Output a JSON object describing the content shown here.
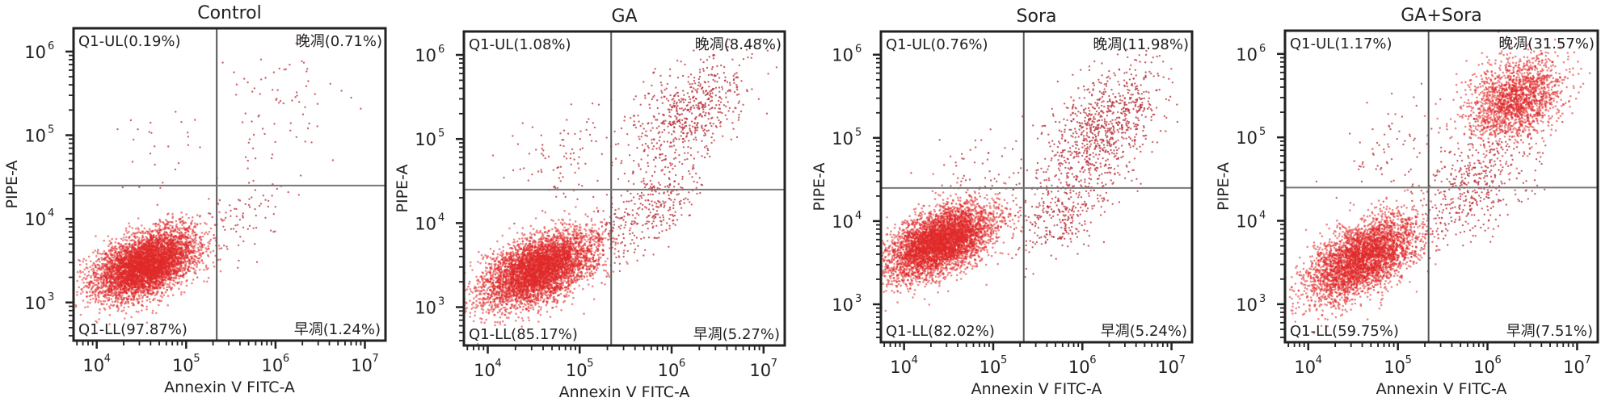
{
  "chart_data": [
    {
      "type": "scatter",
      "title": "Control",
      "xlabel": "Annexin V FITC-A",
      "ylabel": "PIPE-A",
      "xscale": "log",
      "yscale": "log",
      "xlim": [
        5500,
        17000000
      ],
      "ylim": [
        350,
        1900000
      ],
      "x_ticks": [
        {
          "base": "10",
          "exp": "4",
          "value": 10000
        },
        {
          "base": "10",
          "exp": "5",
          "value": 100000
        },
        {
          "base": "10",
          "exp": "6",
          "value": 1000000
        },
        {
          "base": "10",
          "exp": "7",
          "value": 10000000
        }
      ],
      "y_ticks": [
        {
          "base": "10",
          "exp": "3",
          "value": 1000
        },
        {
          "base": "10",
          "exp": "4",
          "value": 10000
        },
        {
          "base": "10",
          "exp": "5",
          "value": 100000
        },
        {
          "base": "10",
          "exp": "6",
          "value": 1000000
        }
      ],
      "gate": {
        "x": 220000,
        "y": 25000
      },
      "quadrants": [
        {
          "id": "UL",
          "label": "Q1-UL(0.19%)",
          "percent": 0.19,
          "position": "top-left"
        },
        {
          "id": "UR",
          "label": "晚凋(0.71%)",
          "percent": 0.71,
          "position": "top-right"
        },
        {
          "id": "LL",
          "label": "Q1-LL(97.87%)",
          "percent": 97.87,
          "position": "bottom-left"
        },
        {
          "id": "LR",
          "label": "早凋(1.24%)",
          "percent": 1.24,
          "position": "bottom-right"
        }
      ],
      "populations": [
        {
          "name": "live",
          "log_x_center": 4.55,
          "log_y_center": 3.45,
          "log_x_sd": 0.28,
          "log_y_sd": 0.2,
          "corr": 0.45,
          "n": 5200
        },
        {
          "name": "late",
          "log_x_center": 6.1,
          "log_y_center": 5.4,
          "log_x_sd": 0.35,
          "log_y_sd": 0.35,
          "corr": 0.3,
          "n": 70
        },
        {
          "name": "early",
          "log_x_center": 5.6,
          "log_y_center": 4.0,
          "log_x_sd": 0.3,
          "log_y_sd": 0.3,
          "corr": 0.5,
          "n": 90
        },
        {
          "name": "ul",
          "log_x_center": 4.8,
          "log_y_center": 4.8,
          "log_x_sd": 0.3,
          "log_y_sd": 0.3,
          "corr": 0.0,
          "n": 25
        }
      ],
      "point_color": "#e02a2a"
    },
    {
      "type": "scatter",
      "title": "GA",
      "xlabel": "Annexin V FITC-A",
      "ylabel": "PIPE-A",
      "xscale": "log",
      "yscale": "log",
      "xlim": [
        5500,
        17000000
      ],
      "ylim": [
        350,
        1900000
      ],
      "x_ticks": [
        {
          "base": "10",
          "exp": "4",
          "value": 10000
        },
        {
          "base": "10",
          "exp": "5",
          "value": 100000
        },
        {
          "base": "10",
          "exp": "6",
          "value": 1000000
        },
        {
          "base": "10",
          "exp": "7",
          "value": 10000000
        }
      ],
      "y_ticks": [
        {
          "base": "10",
          "exp": "3",
          "value": 1000
        },
        {
          "base": "10",
          "exp": "4",
          "value": 10000
        },
        {
          "base": "10",
          "exp": "5",
          "value": 100000
        },
        {
          "base": "10",
          "exp": "6",
          "value": 1000000
        }
      ],
      "gate": {
        "x": 220000,
        "y": 25000
      },
      "quadrants": [
        {
          "id": "UL",
          "label": "Q1-UL(1.08%)",
          "percent": 1.08,
          "position": "top-left"
        },
        {
          "id": "UR",
          "label": "晚凋(8.48%)",
          "percent": 8.48,
          "position": "top-right"
        },
        {
          "id": "LL",
          "label": "Q1-LL(85.17%)",
          "percent": 85.17,
          "position": "bottom-left"
        },
        {
          "id": "LR",
          "label": "早凋(5.27%)",
          "percent": 5.27,
          "position": "bottom-right"
        }
      ],
      "populations": [
        {
          "name": "live",
          "log_x_center": 4.55,
          "log_y_center": 3.45,
          "log_x_sd": 0.3,
          "log_y_sd": 0.22,
          "corr": 0.5,
          "n": 4800
        },
        {
          "name": "late",
          "log_x_center": 6.2,
          "log_y_center": 5.3,
          "log_x_sd": 0.32,
          "log_y_sd": 0.35,
          "corr": 0.55,
          "n": 600
        },
        {
          "name": "early",
          "log_x_center": 5.7,
          "log_y_center": 4.1,
          "log_x_sd": 0.3,
          "log_y_sd": 0.3,
          "corr": 0.6,
          "n": 330
        },
        {
          "name": "ul",
          "log_x_center": 4.8,
          "log_y_center": 4.8,
          "log_x_sd": 0.32,
          "log_y_sd": 0.3,
          "corr": 0.2,
          "n": 90
        }
      ],
      "point_color": "#e02a2a"
    },
    {
      "type": "scatter",
      "title": "Sora",
      "xlabel": "Annexin V FITC-A",
      "ylabel": "PIPE-A",
      "xscale": "log",
      "yscale": "log",
      "xlim": [
        5500,
        17000000
      ],
      "ylim": [
        350,
        1900000
      ],
      "x_ticks": [
        {
          "base": "10",
          "exp": "4",
          "value": 10000
        },
        {
          "base": "10",
          "exp": "5",
          "value": 100000
        },
        {
          "base": "10",
          "exp": "6",
          "value": 1000000
        },
        {
          "base": "10",
          "exp": "7",
          "value": 10000000
        }
      ],
      "y_ticks": [
        {
          "base": "10",
          "exp": "3",
          "value": 1000
        },
        {
          "base": "10",
          "exp": "4",
          "value": 10000
        },
        {
          "base": "10",
          "exp": "5",
          "value": 100000
        },
        {
          "base": "10",
          "exp": "6",
          "value": 1000000
        }
      ],
      "gate": {
        "x": 220000,
        "y": 25000
      },
      "quadrants": [
        {
          "id": "UL",
          "label": "Q1-UL(0.76%)",
          "percent": 0.76,
          "position": "top-left"
        },
        {
          "id": "UR",
          "label": "晚凋(11.98%)",
          "percent": 11.98,
          "position": "top-right"
        },
        {
          "id": "LL",
          "label": "Q1-LL(82.02%)",
          "percent": 82.02,
          "position": "bottom-left"
        },
        {
          "id": "LR",
          "label": "早凋(5.24%)",
          "percent": 5.24,
          "position": "bottom-right"
        }
      ],
      "populations": [
        {
          "name": "live",
          "log_x_center": 4.4,
          "log_y_center": 3.75,
          "log_x_sd": 0.3,
          "log_y_sd": 0.22,
          "corr": 0.5,
          "n": 4700
        },
        {
          "name": "late",
          "log_x_center": 6.25,
          "log_y_center": 5.15,
          "log_x_sd": 0.3,
          "log_y_sd": 0.35,
          "corr": 0.45,
          "n": 800
        },
        {
          "name": "early",
          "log_x_center": 5.8,
          "log_y_center": 4.15,
          "log_x_sd": 0.3,
          "log_y_sd": 0.3,
          "corr": 0.5,
          "n": 330
        },
        {
          "name": "ul",
          "log_x_center": 4.9,
          "log_y_center": 4.7,
          "log_x_sd": 0.3,
          "log_y_sd": 0.3,
          "corr": 0.2,
          "n": 60
        }
      ],
      "point_color": "#e02a2a"
    },
    {
      "type": "scatter",
      "title": "GA+Sora",
      "xlabel": "Annexin V FITC-A",
      "ylabel": "PIPE-A",
      "xscale": "log",
      "yscale": "log",
      "xlim": [
        5500,
        17000000
      ],
      "ylim": [
        350,
        1900000
      ],
      "x_ticks": [
        {
          "base": "10",
          "exp": "4",
          "value": 10000
        },
        {
          "base": "10",
          "exp": "5",
          "value": 100000
        },
        {
          "base": "10",
          "exp": "6",
          "value": 1000000
        },
        {
          "base": "10",
          "exp": "7",
          "value": 10000000
        }
      ],
      "y_ticks": [
        {
          "base": "10",
          "exp": "3",
          "value": 1000
        },
        {
          "base": "10",
          "exp": "4",
          "value": 10000
        },
        {
          "base": "10",
          "exp": "5",
          "value": 100000
        },
        {
          "base": "10",
          "exp": "6",
          "value": 1000000
        }
      ],
      "gate": {
        "x": 220000,
        "y": 25000
      },
      "quadrants": [
        {
          "id": "UL",
          "label": "Q1-UL(1.17%)",
          "percent": 1.17,
          "position": "top-left"
        },
        {
          "id": "UR",
          "label": "晚凋(31.57%)",
          "percent": 31.57,
          "position": "top-right"
        },
        {
          "id": "LL",
          "label": "Q1-LL(59.75%)",
          "percent": 59.75,
          "position": "bottom-left"
        },
        {
          "id": "LR",
          "label": "早凋(7.51%)",
          "percent": 7.51,
          "position": "bottom-right"
        }
      ],
      "populations": [
        {
          "name": "live",
          "log_x_center": 4.6,
          "log_y_center": 3.55,
          "log_x_sd": 0.3,
          "log_y_sd": 0.25,
          "corr": 0.55,
          "n": 3600
        },
        {
          "name": "late",
          "log_x_center": 6.3,
          "log_y_center": 5.45,
          "log_x_sd": 0.27,
          "log_y_sd": 0.25,
          "corr": 0.35,
          "n": 1800
        },
        {
          "name": "early",
          "log_x_center": 5.85,
          "log_y_center": 4.4,
          "log_x_sd": 0.32,
          "log_y_sd": 0.35,
          "corr": 0.55,
          "n": 450
        },
        {
          "name": "ul",
          "log_x_center": 4.9,
          "log_y_center": 4.8,
          "log_x_sd": 0.3,
          "log_y_sd": 0.3,
          "corr": 0.2,
          "n": 70
        }
      ],
      "point_color": "#e02a2a"
    }
  ]
}
